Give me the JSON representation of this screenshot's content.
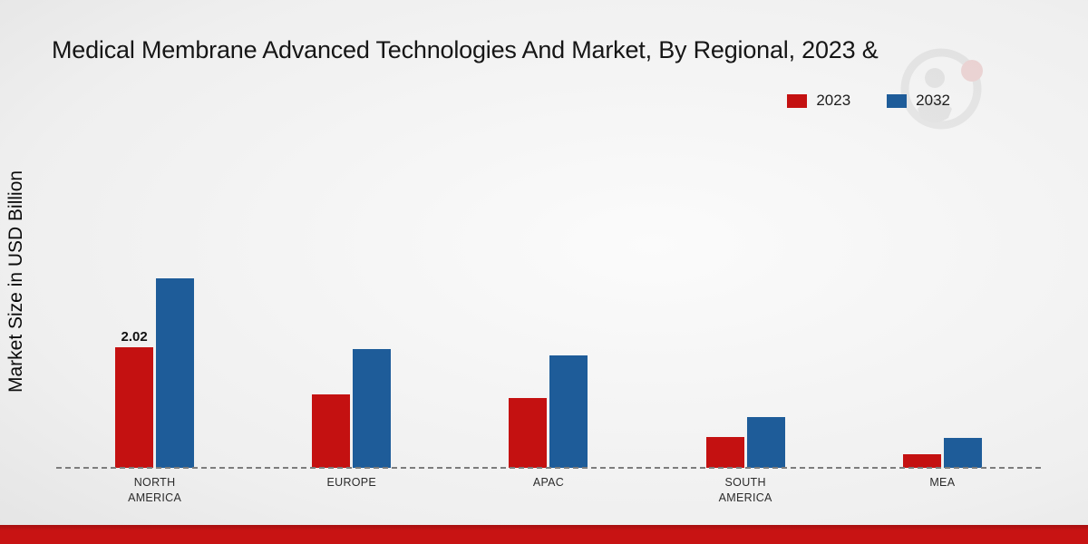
{
  "chart_data": {
    "type": "bar",
    "title": "Medical Membrane Advanced Technologies And Market, By Regional, 2023 &",
    "xlabel": "",
    "ylabel": "Market Size in USD Billion",
    "categories": [
      "NORTH\nAMERICA",
      "EUROPE",
      "APAC",
      "SOUTH\nAMERICA",
      "MEA"
    ],
    "series": [
      {
        "name": "2023",
        "color": "#c41111",
        "values": [
          2.02,
          1.22,
          1.17,
          0.52,
          0.22
        ],
        "data_labels": [
          "2.02",
          "",
          "",
          "",
          ""
        ]
      },
      {
        "name": "2032",
        "color": "#1e5c99",
        "values": [
          3.16,
          1.99,
          1.88,
          0.85,
          0.5
        ],
        "data_labels": [
          "",
          "",
          "",
          "",
          ""
        ]
      }
    ],
    "ylim": [
      0,
      3.5
    ],
    "grid": false,
    "legend_position": "top-right",
    "baseline_style": "dashed",
    "axis_visible": false
  }
}
